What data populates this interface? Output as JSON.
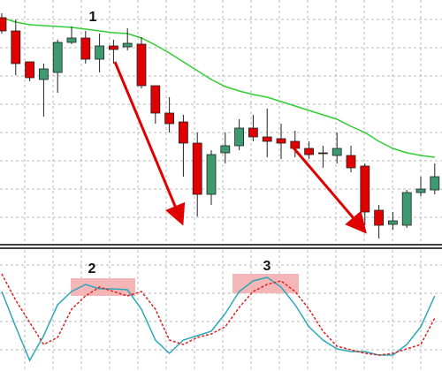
{
  "chart_data": {
    "type": "candlestick",
    "open": [
      255,
      240,
      205,
      185,
      193,
      227,
      232,
      208,
      223,
      222,
      225,
      178,
      147,
      137,
      113,
      55,
      102,
      110,
      130,
      120,
      118,
      115,
      107,
      102,
      99,
      99,
      87,
      37,
      21,
      20,
      57,
      60
    ],
    "high": [
      260,
      253,
      205,
      203,
      230,
      245,
      240,
      237,
      230,
      243,
      233,
      178,
      165,
      145,
      125,
      105,
      125,
      140,
      145,
      152,
      135,
      127,
      115,
      110,
      125,
      110,
      90,
      43,
      35,
      60,
      75,
      90
    ],
    "low": [
      237,
      190,
      183,
      143,
      170,
      225,
      203,
      193,
      203,
      218,
      175,
      135,
      125,
      75,
      30,
      43,
      90,
      105,
      115,
      97,
      95,
      97,
      95,
      85,
      90,
      80,
      20,
      5,
      15,
      17,
      53,
      55
    ],
    "close": [
      240,
      203,
      187,
      197,
      227,
      232,
      208,
      223,
      219,
      226,
      178,
      147,
      135,
      113,
      55,
      100,
      110,
      130,
      120,
      115,
      113,
      107,
      100,
      101,
      107,
      85,
      35,
      20,
      25,
      57,
      61,
      75
    ],
    "up_color": "#3c9a6e",
    "down_color": "#e00000",
    "ylim": [
      0,
      275
    ],
    "grid": true,
    "ma": {
      "color": "#33cc33",
      "values": [
        255,
        250,
        247,
        246,
        245,
        244,
        242,
        240,
        238,
        237,
        232,
        224,
        215,
        205,
        195,
        185,
        177,
        172,
        168,
        165,
        160,
        155,
        150,
        145,
        140,
        132,
        125,
        115,
        107,
        102,
        99,
        97
      ]
    },
    "indicator": {
      "ylim": [
        0,
        130
      ],
      "series": [
        {
          "color": "#2aa8b8",
          "values": [
            88,
            48,
            10,
            38,
            73,
            88,
            96,
            91,
            91,
            90,
            68,
            33,
            18,
            33,
            38,
            43,
            63,
            88,
            100,
            104,
            93,
            73,
            48,
            33,
            23,
            20,
            20,
            16,
            16,
            28,
            48,
            83
          ]
        },
        {
          "color": "#e02020",
          "dashed": true,
          "values": [
            108,
            78,
            53,
            28,
            36,
            68,
            83,
            93,
            88,
            83,
            88,
            68,
            33,
            28,
            36,
            40,
            48,
            70,
            88,
            96,
            100,
            88,
            68,
            43,
            26,
            22,
            18,
            16,
            18,
            23,
            28,
            58
          ]
        }
      ]
    },
    "annotations": [
      "1",
      "2",
      "3"
    ]
  }
}
